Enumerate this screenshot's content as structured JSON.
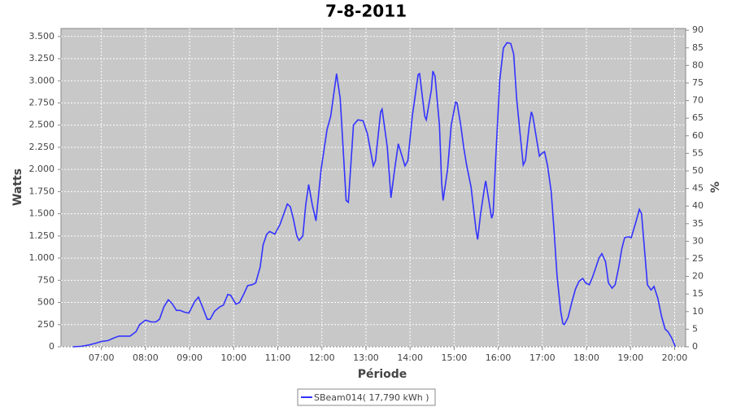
{
  "chart_data": {
    "type": "line",
    "title": "7-8-2011",
    "xlabel": "Période",
    "ylabel": "Watts",
    "y2label": "%",
    "x": [
      "06:21",
      "06:32",
      "06:43",
      "06:52",
      "07:00",
      "07:09",
      "07:17",
      "07:24",
      "07:33",
      "07:39",
      "07:47",
      "07:52",
      "08:00",
      "08:08",
      "08:14",
      "08:19",
      "08:25",
      "08:31",
      "08:36",
      "08:42",
      "08:47",
      "08:53",
      "08:59",
      "09:07",
      "09:12",
      "09:17",
      "09:24",
      "09:28",
      "09:34",
      "09:41",
      "09:46",
      "09:52",
      "09:56",
      "10:03",
      "10:08",
      "10:14",
      "10:19",
      "10:25",
      "10:30",
      "10:36",
      "10:40",
      "10:45",
      "10:49",
      "10:56",
      "11:03",
      "11:13",
      "11:17",
      "11:21",
      "11:26",
      "11:29",
      "11:34",
      "11:38",
      "11:42",
      "11:47",
      "11:52",
      "11:59",
      "12:07",
      "12:12",
      "12:20",
      "12:25",
      "12:33",
      "12:36",
      "12:43",
      "12:49",
      "12:56",
      "13:02",
      "13:10",
      "13:13",
      "13:20",
      "13:22",
      "13:29",
      "13:34",
      "13:39",
      "13:44",
      "13:53",
      "13:57",
      "14:03",
      "14:11",
      "14:13",
      "14:20",
      "14:22",
      "14:29",
      "14:31",
      "14:34",
      "14:40",
      "14:43",
      "14:45",
      "14:51",
      "14:56",
      "15:02",
      "15:04",
      "15:09",
      "15:13",
      "15:17",
      "15:23",
      "15:30",
      "15:32",
      "15:36",
      "15:42",
      "15:43",
      "15:51",
      "15:53",
      "15:57",
      "16:02",
      "16:07",
      "16:12",
      "16:17",
      "16:21",
      "16:25",
      "16:30",
      "16:34",
      "16:37",
      "16:42",
      "16:45",
      "16:47",
      "16:52",
      "16:56",
      "16:59",
      "17:03",
      "17:07",
      "17:12",
      "17:16",
      "17:20",
      "17:25",
      "17:28",
      "17:30",
      "17:35",
      "17:40",
      "17:45",
      "17:50",
      "17:55",
      "17:59",
      "18:04",
      "18:08",
      "18:13",
      "18:17",
      "18:21",
      "18:26",
      "18:30",
      "18:35",
      "18:39",
      "18:44",
      "18:48",
      "18:52",
      "18:57",
      "19:01",
      "19:07",
      "19:12",
      "19:15",
      "19:19",
      "19:23",
      "19:28",
      "19:32",
      "19:37",
      "19:42",
      "19:47",
      "19:51",
      "19:56",
      "20:01"
    ],
    "series": [
      {
        "name": "SBeam014( 17,790 kWh )",
        "color": "#3333ff",
        "values": [
          0,
          5,
          20,
          40,
          60,
          70,
          100,
          120,
          120,
          120,
          170,
          250,
          300,
          280,
          280,
          310,
          450,
          530,
          490,
          410,
          410,
          390,
          380,
          510,
          560,
          460,
          310,
          310,
          400,
          450,
          470,
          590,
          580,
          480,
          500,
          600,
          690,
          700,
          720,
          900,
          1150,
          1270,
          1300,
          1270,
          1380,
          1610,
          1580,
          1450,
          1250,
          1200,
          1250,
          1600,
          1830,
          1600,
          1420,
          2000,
          2450,
          2600,
          3080,
          2800,
          1650,
          1630,
          2500,
          2560,
          2550,
          2400,
          2040,
          2100,
          2650,
          2680,
          2250,
          1680,
          2000,
          2290,
          2040,
          2100,
          2600,
          3070,
          3080,
          2600,
          2560,
          2900,
          3110,
          3050,
          2500,
          1850,
          1650,
          2000,
          2500,
          2760,
          2750,
          2500,
          2250,
          2050,
          1800,
          1300,
          1210,
          1500,
          1830,
          1870,
          1450,
          1500,
          2200,
          3000,
          3370,
          3430,
          3420,
          3300,
          2800,
          2380,
          2050,
          2100,
          2480,
          2650,
          2600,
          2350,
          2150,
          2180,
          2200,
          2050,
          1750,
          1300,
          800,
          400,
          260,
          250,
          330,
          500,
          650,
          740,
          770,
          720,
          700,
          780,
          900,
          1000,
          1050,
          960,
          720,
          660,
          700,
          900,
          1100,
          1230,
          1240,
          1230,
          1400,
          1550,
          1500,
          1100,
          700,
          640,
          680,
          550,
          350,
          200,
          170,
          100,
          0
        ]
      }
    ],
    "xlim": [
      "06:05",
      "20:15"
    ],
    "xticks": [
      "07:00",
      "08:00",
      "09:00",
      "10:00",
      "11:00",
      "12:00",
      "13:00",
      "14:00",
      "15:00",
      "16:00",
      "17:00",
      "18:00",
      "19:00",
      "20:00"
    ],
    "ylim": [
      0,
      3590
    ],
    "yticks": [
      0,
      250,
      500,
      750,
      {
        "value": 1000,
        "label": "1.000"
      },
      {
        "value": 1250,
        "label": "1.250"
      },
      {
        "value": 1500,
        "label": "1.500"
      },
      {
        "value": 1750,
        "label": "1.750"
      },
      {
        "value": 2000,
        "label": "2.000"
      },
      {
        "value": 2250,
        "label": "2.250"
      },
      {
        "value": 2500,
        "label": "2.500"
      },
      {
        "value": 2750,
        "label": "2.750"
      },
      {
        "value": 3000,
        "label": "3.000"
      },
      {
        "value": 3250,
        "label": "3.250"
      },
      {
        "value": 3500,
        "label": "3.500"
      }
    ],
    "y2lim": [
      0,
      90.5
    ],
    "y2ticks": [
      0,
      5,
      10,
      15,
      20,
      25,
      30,
      35,
      40,
      45,
      50,
      55,
      60,
      65,
      70,
      75,
      80,
      85,
      90
    ],
    "grid": true,
    "legend": "bottom",
    "background": "#c8c8c8"
  }
}
